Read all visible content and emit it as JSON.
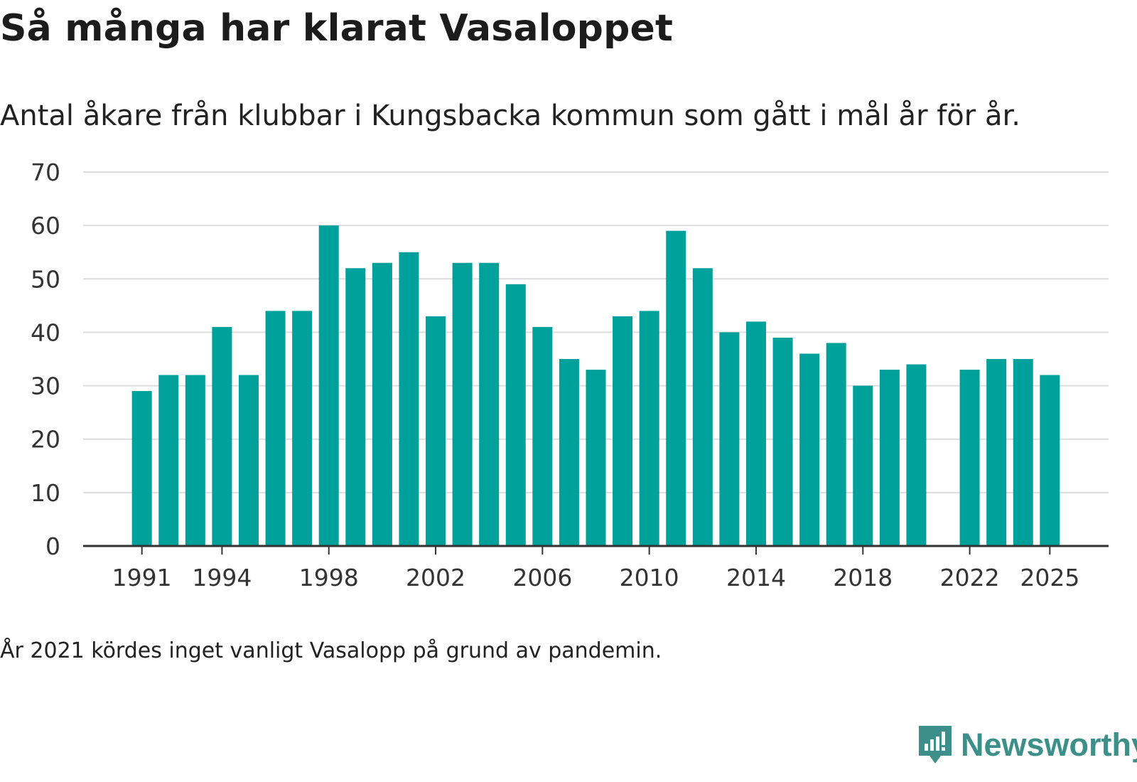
{
  "title": "Så många har klarat Vasaloppet",
  "subtitle": "Antal åkare från klubbar i Kungsbacka kommun som gått i mål år för år.",
  "note": "År 2021 kördes inget vanligt Vasalopp på grund av pandemin.",
  "brand": {
    "name": "Newsworthy",
    "icon": "newsworthy-logo-icon",
    "color": "#3d8f8a"
  },
  "colors": {
    "bar": "#00a19a",
    "grid": "#dddddd",
    "axis": "#333333"
  },
  "chart_data": {
    "type": "bar",
    "title": "Så många har klarat Vasaloppet",
    "xlabel": "",
    "ylabel": "",
    "ylim": [
      0,
      70
    ],
    "yticks": [
      0,
      10,
      20,
      30,
      40,
      50,
      60,
      70
    ],
    "xlim": [
      1988.8,
      2027.2
    ],
    "xticks": [
      1991,
      1994,
      1998,
      2002,
      2006,
      2010,
      2014,
      2018,
      2022,
      2025
    ],
    "grid": true,
    "legend": "none",
    "categories": [
      1991,
      1992,
      1993,
      1994,
      1995,
      1996,
      1997,
      1998,
      1999,
      2000,
      2001,
      2002,
      2003,
      2004,
      2005,
      2006,
      2007,
      2008,
      2009,
      2010,
      2011,
      2012,
      2013,
      2014,
      2015,
      2016,
      2017,
      2018,
      2019,
      2020,
      2022,
      2023,
      2024,
      2025
    ],
    "values": [
      29,
      32,
      32,
      41,
      32,
      44,
      44,
      60,
      52,
      53,
      55,
      43,
      53,
      53,
      49,
      41,
      35,
      33,
      43,
      44,
      59,
      52,
      40,
      42,
      39,
      36,
      38,
      30,
      33,
      34,
      33,
      35,
      35,
      32
    ]
  }
}
